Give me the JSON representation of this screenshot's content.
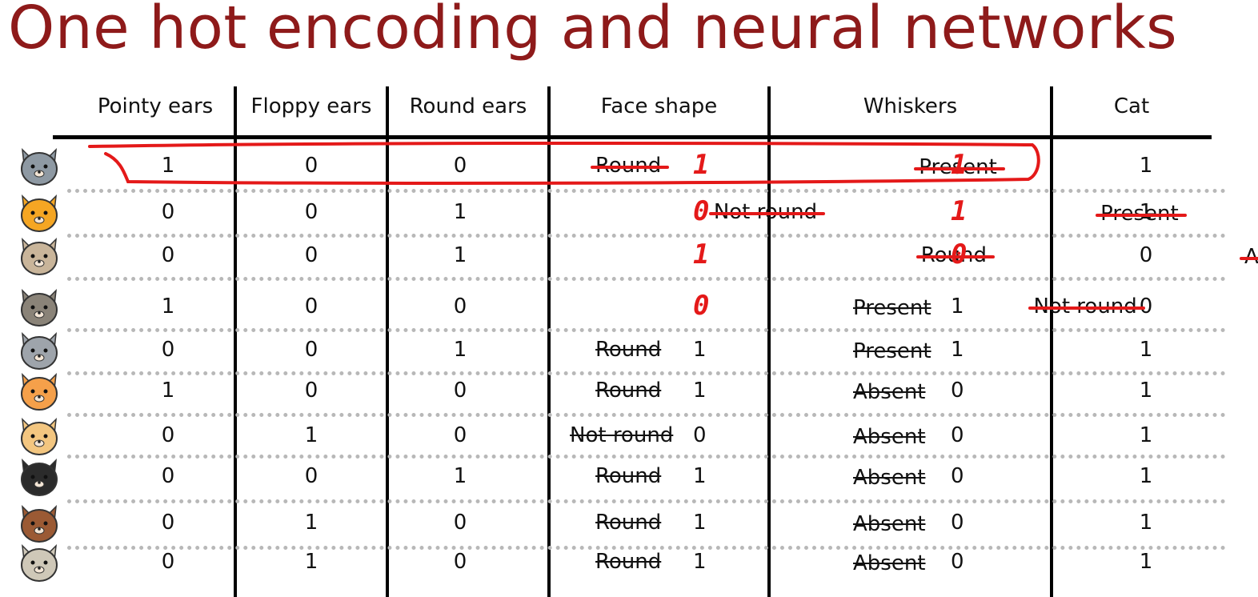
{
  "title": "One hot encoding and neural networks",
  "headers": [
    "Pointy ears",
    "Floppy ears",
    "Round ears",
    "Face shape",
    "Whiskers",
    "Cat"
  ],
  "rows": [
    {
      "animal": "gray-cat-icon",
      "pointy": "1",
      "floppy": "0",
      "round": "0",
      "face": "Round",
      "face_num": "1",
      "whiskers": "Present",
      "whiskers_num": "1",
      "cat": "1"
    },
    {
      "animal": "orange-cat-icon",
      "pointy": "0",
      "floppy": "0",
      "round": "1",
      "face": "Not round",
      "face_num": "0",
      "whiskers": "Present",
      "whiskers_num": "1",
      "cat": "1"
    },
    {
      "animal": "hamster-icon",
      "pointy": "0",
      "floppy": "0",
      "round": "1",
      "face": "Round",
      "face_num": "1",
      "whiskers": "Absent",
      "whiskers_num": "0",
      "cat": "0"
    },
    {
      "animal": "wolf-icon",
      "pointy": "1",
      "floppy": "0",
      "round": "0",
      "face": "Not round",
      "face_num": "0",
      "whiskers": "Present",
      "whiskers_num": "1",
      "cat": "0"
    },
    {
      "animal": "owl-cat-icon",
      "pointy": "0",
      "floppy": "0",
      "round": "1",
      "face": "Round",
      "face_num": "1",
      "whiskers": "Present",
      "whiskers_num": "1",
      "cat": "1"
    },
    {
      "animal": "fox-cat-icon",
      "pointy": "1",
      "floppy": "0",
      "round": "0",
      "face": "Round",
      "face_num": "1",
      "whiskers": "Absent",
      "whiskers_num": "0",
      "cat": "1"
    },
    {
      "animal": "tan-dog-icon",
      "pointy": "0",
      "floppy": "1",
      "round": "0",
      "face": "Not round",
      "face_num": "0",
      "whiskers": "Absent",
      "whiskers_num": "0",
      "cat": "1"
    },
    {
      "animal": "tuxedo-cat-icon",
      "pointy": "0",
      "floppy": "0",
      "round": "1",
      "face": "Round",
      "face_num": "1",
      "whiskers": "Absent",
      "whiskers_num": "0",
      "cat": "1"
    },
    {
      "animal": "brown-dog-icon",
      "pointy": "0",
      "floppy": "1",
      "round": "0",
      "face": "Round",
      "face_num": "1",
      "whiskers": "Absent",
      "whiskers_num": "0",
      "cat": "1"
    },
    {
      "animal": "pug-icon",
      "pointy": "0",
      "floppy": "1",
      "round": "0",
      "face": "Round",
      "face_num": "1",
      "whiskers": "Absent",
      "whiskers_num": "0",
      "cat": "1"
    }
  ],
  "colors": {
    "title": "#8e1a1a",
    "annotation": "#e41919"
  }
}
